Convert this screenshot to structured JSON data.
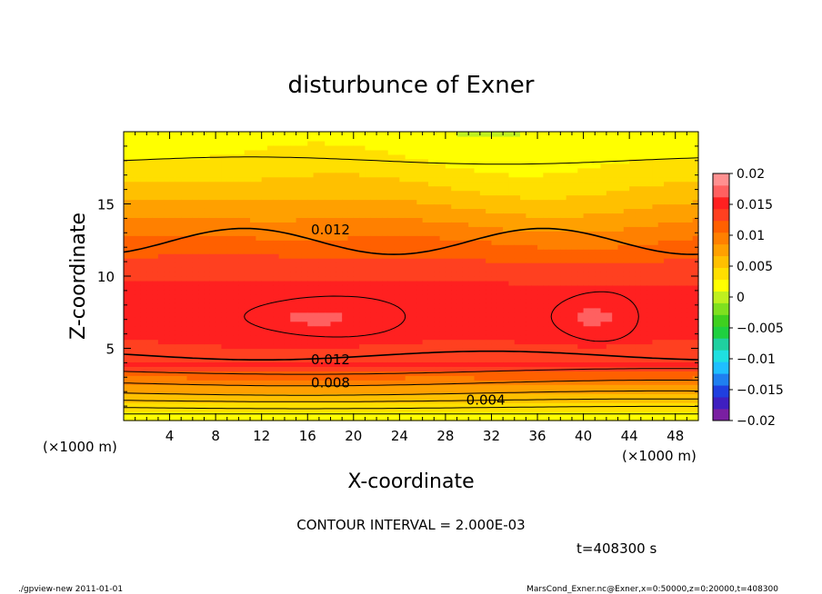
{
  "chart_data": {
    "type": "heatmap",
    "title": "disturbunce of Exner",
    "xlabel": "X-coordinate",
    "ylabel": "Z-coordinate",
    "x_unit": "(×1000 m)",
    "y_unit": "(×1000 m)",
    "xlim": [
      0,
      50
    ],
    "ylim": [
      0,
      20
    ],
    "x_ticks": [
      4,
      8,
      12,
      16,
      20,
      24,
      28,
      32,
      36,
      40,
      44,
      48
    ],
    "y_ticks": [
      5,
      10,
      15
    ],
    "colorbar": {
      "ticks": [
        "0.02",
        "0.015",
        "0.01",
        "0.005",
        "0",
        "−0.005",
        "−0.01",
        "−0.015",
        "−0.02"
      ],
      "range": [
        -0.02,
        0.02
      ],
      "colors": [
        "#7a1fa2",
        "#3f1fc0",
        "#1f3fe0",
        "#1f7ff0",
        "#1fbfff",
        "#1fdfe0",
        "#1fd0a0",
        "#1fd040",
        "#3fd01f",
        "#7fe01f",
        "#bff01f",
        "#ffff00",
        "#ffdf00",
        "#ffc000",
        "#ffa000",
        "#ff8000",
        "#ff6000",
        "#ff4020",
        "#ff2020",
        "#ff6060",
        "#ff9090"
      ]
    },
    "contour_interval": "CONTOUR INTERVAL = 2.000E-03",
    "contour_labels": [
      {
        "text": "0.012",
        "x": 18,
        "z": 13.2
      },
      {
        "text": "0.012",
        "x": 18,
        "z": 4.2
      },
      {
        "text": "0.008",
        "x": 18,
        "z": 2.6
      },
      {
        "text": "0.004",
        "x": 31.5,
        "z": 1.4
      }
    ],
    "time": "t=408300 s"
  },
  "footer": {
    "left": "./gpview-new   2011-01-01",
    "right": "MarsCond_Exner.nc@Exner,x=0:50000,z=0:20000,t=408300"
  }
}
